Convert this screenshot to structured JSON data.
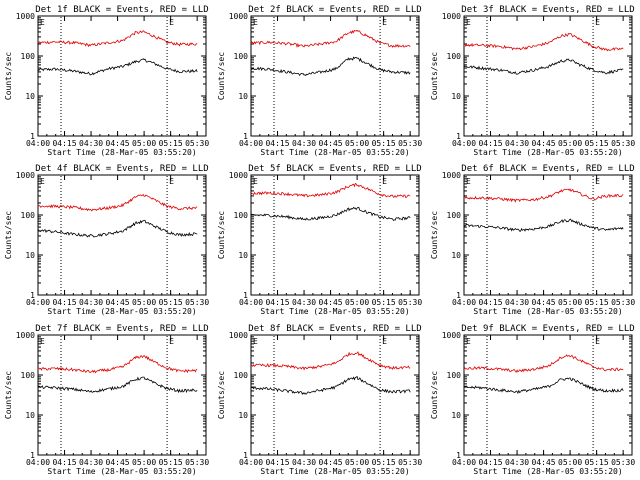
{
  "figure": {
    "background": "#ffffff",
    "axis_color": "#000000",
    "event_color": "#000000",
    "lld_color": "#e00000"
  },
  "chart_data": [
    {
      "type": "line",
      "detector": "1f",
      "title": "Det 1f BLACK = Events, RED = LLD",
      "xlabel": "Start Time (28-Mar-05 03:55:20)",
      "ylabel": "Counts/sec",
      "x_ticks": [
        "04:00",
        "04:15",
        "04:30",
        "04:45",
        "05:00",
        "05:15",
        "05:30"
      ],
      "y_ticks": [
        "1",
        "10",
        "100",
        "1000"
      ],
      "xlim": [
        "04:00",
        "05:35"
      ],
      "ylim": [
        1,
        1000
      ],
      "y_scale": "log",
      "vertical_dotted_lines": [
        "04:13",
        "05:13"
      ],
      "markers": [
        {
          "text": "E",
          "x": "04:00"
        },
        {
          "text": "E",
          "x": "05:13"
        }
      ],
      "series": [
        {
          "role": "events",
          "x": [
            "04:00",
            "04:10",
            "04:20",
            "04:30",
            "04:40",
            "04:48",
            "04:55",
            "05:00",
            "05:05",
            "05:13",
            "05:20",
            "05:30"
          ],
          "values": [
            45,
            47,
            42,
            36,
            48,
            55,
            72,
            80,
            67,
            48,
            41,
            42
          ]
        },
        {
          "role": "lld",
          "x": [
            "04:00",
            "04:10",
            "04:20",
            "04:30",
            "04:40",
            "04:48",
            "04:55",
            "05:00",
            "05:05",
            "05:13",
            "05:20",
            "05:30"
          ],
          "values": [
            215,
            225,
            215,
            185,
            215,
            245,
            380,
            400,
            320,
            220,
            195,
            200
          ]
        }
      ]
    },
    {
      "type": "line",
      "detector": "2f",
      "title": "Det 2f BLACK = Events, RED = LLD",
      "xlabel": "Start Time (28-Mar-05 03:55:20)",
      "ylabel": "Counts/sec",
      "x_ticks": [
        "04:00",
        "04:15",
        "04:30",
        "04:45",
        "05:00",
        "05:15",
        "05:30"
      ],
      "y_ticks": [
        "1",
        "10",
        "100",
        "1000"
      ],
      "xlim": [
        "04:00",
        "05:35"
      ],
      "ylim": [
        1,
        1000
      ],
      "y_scale": "log",
      "vertical_dotted_lines": [
        "04:13",
        "05:13"
      ],
      "markers": [
        {
          "text": "E",
          "x": "04:00"
        },
        {
          "text": "E",
          "x": "05:13"
        }
      ],
      "series": [
        {
          "role": "events",
          "x": [
            "04:00",
            "04:10",
            "04:20",
            "04:30",
            "04:40",
            "04:48",
            "04:55",
            "05:00",
            "05:05",
            "05:13",
            "05:20",
            "05:30"
          ],
          "values": [
            50,
            47,
            40,
            34,
            40,
            48,
            85,
            88,
            68,
            45,
            40,
            38
          ]
        },
        {
          "role": "lld",
          "x": [
            "04:00",
            "04:10",
            "04:20",
            "04:30",
            "04:40",
            "04:48",
            "04:55",
            "05:00",
            "05:05",
            "05:13",
            "05:20",
            "05:30"
          ],
          "values": [
            210,
            220,
            205,
            175,
            200,
            230,
            380,
            420,
            330,
            210,
            180,
            180
          ]
        }
      ]
    },
    {
      "type": "line",
      "detector": "3f",
      "title": "Det 3f BLACK = Events, RED = LLD",
      "xlabel": "Start Time (28-Mar-05 03:55:20)",
      "ylabel": "Counts/sec",
      "x_ticks": [
        "04:00",
        "04:15",
        "04:30",
        "04:45",
        "05:00",
        "05:15",
        "05:30"
      ],
      "y_ticks": [
        "1",
        "10",
        "100",
        "1000"
      ],
      "xlim": [
        "04:00",
        "05:35"
      ],
      "ylim": [
        1,
        1000
      ],
      "y_scale": "log",
      "vertical_dotted_lines": [
        "04:13",
        "05:13"
      ],
      "markers": [
        {
          "text": "E",
          "x": "04:00"
        },
        {
          "text": "E",
          "x": "05:13"
        }
      ],
      "series": [
        {
          "role": "events",
          "x": [
            "04:00",
            "04:10",
            "04:20",
            "04:30",
            "04:40",
            "04:48",
            "04:55",
            "05:00",
            "05:05",
            "05:13",
            "05:20",
            "05:30"
          ],
          "values": [
            55,
            50,
            45,
            38,
            45,
            55,
            75,
            80,
            62,
            45,
            38,
            45
          ]
        },
        {
          "role": "lld",
          "x": [
            "04:00",
            "04:10",
            "04:20",
            "04:30",
            "04:40",
            "04:48",
            "04:55",
            "05:00",
            "05:05",
            "05:13",
            "05:20",
            "05:30"
          ],
          "values": [
            190,
            185,
            175,
            150,
            175,
            215,
            320,
            350,
            270,
            175,
            145,
            150
          ]
        }
      ]
    },
    {
      "type": "line",
      "detector": "4f",
      "title": "Det 4f BLACK = Events, RED = LLD",
      "xlabel": "Start Time (28-Mar-05 03:55:20)",
      "ylabel": "Counts/sec",
      "x_ticks": [
        "04:00",
        "04:15",
        "04:30",
        "04:45",
        "05:00",
        "05:15",
        "05:30"
      ],
      "y_ticks": [
        "1",
        "10",
        "100",
        "1000"
      ],
      "xlim": [
        "04:00",
        "05:35"
      ],
      "ylim": [
        1,
        1000
      ],
      "y_scale": "log",
      "vertical_dotted_lines": [
        "04:13",
        "05:13"
      ],
      "markers": [
        {
          "text": "E",
          "x": "04:00"
        },
        {
          "text": "E",
          "x": "05:13"
        }
      ],
      "series": [
        {
          "role": "events",
          "x": [
            "04:00",
            "04:10",
            "04:20",
            "04:30",
            "04:40",
            "04:48",
            "04:55",
            "05:00",
            "05:05",
            "05:13",
            "05:20",
            "05:30"
          ],
          "values": [
            42,
            38,
            33,
            30,
            34,
            40,
            62,
            70,
            55,
            38,
            32,
            34
          ]
        },
        {
          "role": "lld",
          "x": [
            "04:00",
            "04:10",
            "04:20",
            "04:30",
            "04:40",
            "04:48",
            "04:55",
            "05:00",
            "05:05",
            "05:13",
            "05:20",
            "05:30"
          ],
          "values": [
            170,
            165,
            155,
            135,
            150,
            175,
            280,
            320,
            250,
            165,
            145,
            150
          ]
        }
      ]
    },
    {
      "type": "line",
      "detector": "5f",
      "title": "Det 5f BLACK = Events, RED = LLD",
      "xlabel": "Start Time (28-Mar-05 03:55:20)",
      "ylabel": "Counts/sec",
      "x_ticks": [
        "04:00",
        "04:15",
        "04:30",
        "04:45",
        "05:00",
        "05:15",
        "05:30"
      ],
      "y_ticks": [
        "1",
        "10",
        "100",
        "1000"
      ],
      "xlim": [
        "04:00",
        "05:35"
      ],
      "ylim": [
        1,
        1000
      ],
      "y_scale": "log",
      "vertical_dotted_lines": [
        "04:13",
        "05:13"
      ],
      "markers": [
        {
          "text": "E",
          "x": "04:00"
        },
        {
          "text": "E",
          "x": "05:13"
        }
      ],
      "series": [
        {
          "role": "events",
          "x": [
            "04:00",
            "04:10",
            "04:20",
            "04:30",
            "04:40",
            "04:48",
            "04:55",
            "05:00",
            "05:05",
            "05:13",
            "05:20",
            "05:30"
          ],
          "values": [
            100,
            98,
            90,
            78,
            85,
            100,
            140,
            150,
            120,
            90,
            78,
            85
          ]
        },
        {
          "role": "lld",
          "x": [
            "04:00",
            "04:10",
            "04:20",
            "04:30",
            "04:40",
            "04:48",
            "04:55",
            "05:00",
            "05:05",
            "05:13",
            "05:20",
            "05:30"
          ],
          "values": [
            350,
            355,
            340,
            300,
            320,
            370,
            520,
            580,
            470,
            330,
            290,
            300
          ]
        }
      ]
    },
    {
      "type": "line",
      "detector": "6f",
      "title": "Det 6f BLACK = Events, RED = LLD",
      "xlabel": "Start Time (28-Mar-05 03:55:20)",
      "ylabel": "Counts/sec",
      "x_ticks": [
        "04:00",
        "04:15",
        "04:30",
        "04:45",
        "05:00",
        "05:15",
        "05:30"
      ],
      "y_ticks": [
        "1",
        "10",
        "100",
        "1000"
      ],
      "xlim": [
        "04:00",
        "05:35"
      ],
      "ylim": [
        1,
        1000
      ],
      "y_scale": "log",
      "vertical_dotted_lines": [
        "04:13",
        "05:13"
      ],
      "markers": [
        {
          "text": "E",
          "x": "04:00"
        },
        {
          "text": "E",
          "x": "05:13"
        }
      ],
      "series": [
        {
          "role": "events",
          "x": [
            "04:00",
            "04:10",
            "04:20",
            "04:30",
            "04:40",
            "04:48",
            "04:55",
            "05:00",
            "05:05",
            "05:13",
            "05:20",
            "05:30"
          ],
          "values": [
            55,
            52,
            48,
            42,
            45,
            52,
            70,
            75,
            62,
            48,
            42,
            48
          ]
        },
        {
          "role": "lld",
          "x": [
            "04:00",
            "04:10",
            "04:20",
            "04:30",
            "04:40",
            "04:48",
            "04:55",
            "05:00",
            "05:05",
            "05:13",
            "05:20",
            "05:30"
          ],
          "values": [
            270,
            270,
            255,
            230,
            245,
            290,
            400,
            430,
            350,
            250,
            300,
            310
          ]
        }
      ]
    },
    {
      "type": "line",
      "detector": "7f",
      "title": "Det 7f BLACK = Events, RED = LLD",
      "xlabel": "Start Time (28-Mar-05 03:55:20)",
      "ylabel": "Counts/sec",
      "x_ticks": [
        "04:00",
        "04:15",
        "04:30",
        "04:45",
        "05:00",
        "05:15",
        "05:30"
      ],
      "y_ticks": [
        "1",
        "10",
        "100",
        "1000"
      ],
      "xlim": [
        "04:00",
        "05:35"
      ],
      "ylim": [
        1,
        1000
      ],
      "y_scale": "log",
      "vertical_dotted_lines": [
        "04:13",
        "05:13"
      ],
      "markers": [
        {
          "text": "E",
          "x": "04:00"
        },
        {
          "text": "E",
          "x": "05:13"
        }
      ],
      "series": [
        {
          "role": "events",
          "x": [
            "04:00",
            "04:10",
            "04:20",
            "04:30",
            "04:40",
            "04:48",
            "04:55",
            "05:00",
            "05:05",
            "05:13",
            "05:20",
            "05:30"
          ],
          "values": [
            50,
            48,
            44,
            38,
            45,
            52,
            78,
            85,
            65,
            46,
            40,
            42
          ]
        },
        {
          "role": "lld",
          "x": [
            "04:00",
            "04:10",
            "04:20",
            "04:30",
            "04:40",
            "04:48",
            "04:55",
            "05:00",
            "05:05",
            "05:13",
            "05:20",
            "05:30"
          ],
          "values": [
            140,
            145,
            135,
            120,
            135,
            160,
            270,
            300,
            220,
            150,
            125,
            130
          ]
        }
      ]
    },
    {
      "type": "line",
      "detector": "8f",
      "title": "Det 8f BLACK = Events, RED = LLD",
      "xlabel": "Start Time (28-Mar-05 03:55:20)",
      "ylabel": "Counts/sec",
      "x_ticks": [
        "04:00",
        "04:15",
        "04:30",
        "04:45",
        "05:00",
        "05:15",
        "05:30"
      ],
      "y_ticks": [
        "1",
        "10",
        "100",
        "1000"
      ],
      "xlim": [
        "04:00",
        "05:35"
      ],
      "ylim": [
        1,
        1000
      ],
      "y_scale": "log",
      "vertical_dotted_lines": [
        "04:13",
        "05:13"
      ],
      "markers": [
        {
          "text": "E",
          "x": "04:00"
        },
        {
          "text": "E",
          "x": "05:13"
        }
      ],
      "series": [
        {
          "role": "events",
          "x": [
            "04:00",
            "04:10",
            "04:20",
            "04:30",
            "04:40",
            "04:48",
            "04:55",
            "05:00",
            "05:05",
            "05:13",
            "05:20",
            "05:30"
          ],
          "values": [
            48,
            45,
            40,
            35,
            42,
            50,
            78,
            85,
            65,
            42,
            38,
            40
          ]
        },
        {
          "role": "lld",
          "x": [
            "04:00",
            "04:10",
            "04:20",
            "04:30",
            "04:40",
            "04:48",
            "04:55",
            "05:00",
            "05:05",
            "05:13",
            "05:20",
            "05:30"
          ],
          "values": [
            175,
            175,
            165,
            145,
            165,
            200,
            330,
            360,
            270,
            175,
            150,
            155
          ]
        }
      ]
    },
    {
      "type": "line",
      "detector": "9f",
      "title": "Det 9f BLACK = Events, RED = LLD",
      "xlabel": "Start Time (28-Mar-05 03:55:20)",
      "ylabel": "Counts/sec",
      "x_ticks": [
        "04:00",
        "04:15",
        "04:30",
        "04:45",
        "05:00",
        "05:15",
        "05:30"
      ],
      "y_ticks": [
        "1",
        "10",
        "100",
        "1000"
      ],
      "xlim": [
        "04:00",
        "05:35"
      ],
      "ylim": [
        1,
        1000
      ],
      "y_scale": "log",
      "vertical_dotted_lines": [
        "04:13",
        "05:13"
      ],
      "markers": [
        {
          "text": "E",
          "x": "04:00"
        },
        {
          "text": "E",
          "x": "05:13"
        }
      ],
      "series": [
        {
          "role": "events",
          "x": [
            "04:00",
            "04:10",
            "04:20",
            "04:30",
            "04:40",
            "04:48",
            "04:55",
            "05:00",
            "05:05",
            "05:13",
            "05:20",
            "05:30"
          ],
          "values": [
            50,
            48,
            42,
            38,
            44,
            52,
            78,
            82,
            65,
            45,
            40,
            42
          ]
        },
        {
          "role": "lld",
          "x": [
            "04:00",
            "04:10",
            "04:20",
            "04:30",
            "04:40",
            "04:48",
            "04:55",
            "05:00",
            "05:05",
            "05:13",
            "05:20",
            "05:30"
          ],
          "values": [
            145,
            150,
            140,
            125,
            140,
            170,
            280,
            310,
            240,
            160,
            135,
            140
          ]
        }
      ]
    }
  ]
}
